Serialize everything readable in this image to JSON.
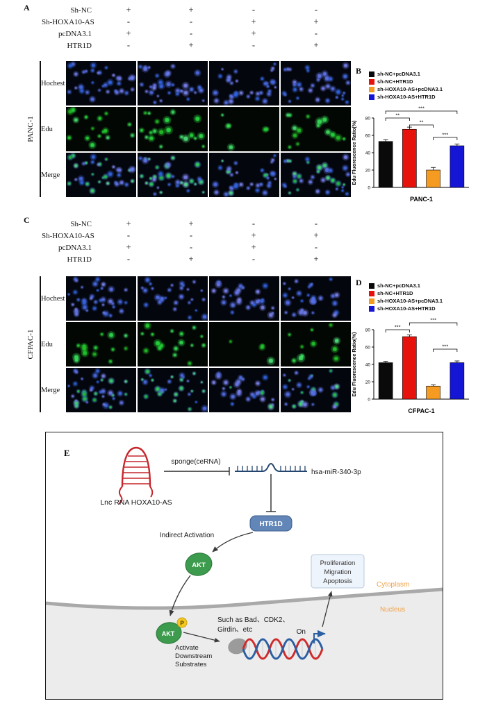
{
  "figure": {
    "panel_a": {
      "label": "A",
      "cell_line": "PANC-1",
      "condition_rows": [
        {
          "name": "Sh-NC",
          "values": [
            "+",
            "+",
            "-",
            "-"
          ]
        },
        {
          "name": "Sh-HOXA10-AS",
          "values": [
            "-",
            "-",
            "+",
            "+"
          ]
        },
        {
          "name": "pcDNA3.1",
          "values": [
            "+",
            "-",
            "+",
            "-"
          ]
        },
        {
          "name": "HTR1D",
          "values": [
            "-",
            "+",
            "-",
            "+"
          ]
        }
      ],
      "row_labels": [
        "Hochest",
        "Edu",
        "Merge"
      ]
    },
    "panel_b": {
      "label": "B"
    },
    "panel_c": {
      "label": "C",
      "cell_line": "CFPAC-1",
      "condition_rows": [
        {
          "name": "Sh-NC",
          "values": [
            "+",
            "+",
            "-",
            "-"
          ]
        },
        {
          "name": "Sh-HOXA10-AS",
          "values": [
            "-",
            "-",
            "+",
            "+"
          ]
        },
        {
          "name": "pcDNA3.1",
          "values": [
            "+",
            "-",
            "+",
            "-"
          ]
        },
        {
          "name": "HTR1D",
          "values": [
            "-",
            "+",
            "-",
            "+"
          ]
        }
      ],
      "row_labels": [
        "Hochest",
        "Edu",
        "Merge"
      ]
    },
    "panel_d": {
      "label": "D"
    },
    "panel_e": {
      "label": "E",
      "lncrna_label": "Lnc RNA HOXA10-AS",
      "sponge_label": "sponge(ceRNA)",
      "mirna_label": "hsa-miR-340-3p",
      "htr1d_label": "HTR1D",
      "indirect_activation": "Indirect Activation",
      "akt_label": "AKT",
      "akt_nucleus_label": "AKT",
      "phospho_label": "P",
      "substrates_line1": "Such as Bad、CDK2、",
      "substrates_line2": "Girdin、etc",
      "activate_line1": "Activate",
      "activate_line2": "Downstream",
      "activate_line3": "Substrates",
      "on_label": "On",
      "outcome_lines": [
        "Proliferation",
        "Migration",
        "Apoptosis"
      ],
      "cytoplasm_label": "Cytoplasm",
      "nucleus_label": "Nucleus"
    }
  },
  "chart_data": [
    {
      "id": "chart-b",
      "type": "bar",
      "title": "",
      "xlabel": "PANC-1",
      "ylabel": "Edu Fluorescence Ratio(%)",
      "ylim": [
        0,
        80
      ],
      "yticks": [
        0,
        20,
        40,
        60,
        80
      ],
      "grid": false,
      "legend_position": "top",
      "categories": [
        "sh-NC+pcDNA3.1",
        "sh-NC+HTR1D",
        "sh-HOXA10-AS+pcDNA3.1",
        "sh-HOXA10-AS+HTR1D"
      ],
      "values": [
        53,
        67,
        20,
        48
      ],
      "errors": [
        2,
        2.5,
        3,
        2
      ],
      "colors": [
        "#0a0a0a",
        "#e8120c",
        "#f59b22",
        "#1515d6"
      ],
      "significance": [
        {
          "text": "***",
          "from": 0,
          "to": 3,
          "row": 3
        },
        {
          "text": "**",
          "from": 0,
          "to": 1,
          "row": 2
        },
        {
          "text": "**",
          "from": 1,
          "to": 2,
          "row": 1
        },
        {
          "text": "***",
          "from": 2,
          "to": 3,
          "row": 0
        }
      ]
    },
    {
      "id": "chart-d",
      "type": "bar",
      "title": "",
      "xlabel": "CFPAC-1",
      "ylabel": "Edu Fluorescence Ratio(%)",
      "ylim": [
        0,
        80
      ],
      "yticks": [
        0,
        20,
        40,
        60,
        80
      ],
      "grid": false,
      "legend_position": "top",
      "categories": [
        "sh-NC+pcDNA3.1",
        "sh-NC+HTR1D",
        "sh-HOXA10-AS+pcDNA3.1",
        "sh-HOXA10-AS+HTR1D"
      ],
      "values": [
        42,
        72,
        15,
        42
      ],
      "errors": [
        1.5,
        2,
        1.5,
        2
      ],
      "colors": [
        "#0a0a0a",
        "#e8120c",
        "#f59b22",
        "#1515d6"
      ],
      "significance": [
        {
          "text": "***",
          "from": 0,
          "to": 1,
          "row": 2
        },
        {
          "text": "***",
          "from": 1,
          "to": 3,
          "row": 3
        },
        {
          "text": "***",
          "from": 2,
          "to": 3,
          "row": 0
        }
      ]
    }
  ]
}
